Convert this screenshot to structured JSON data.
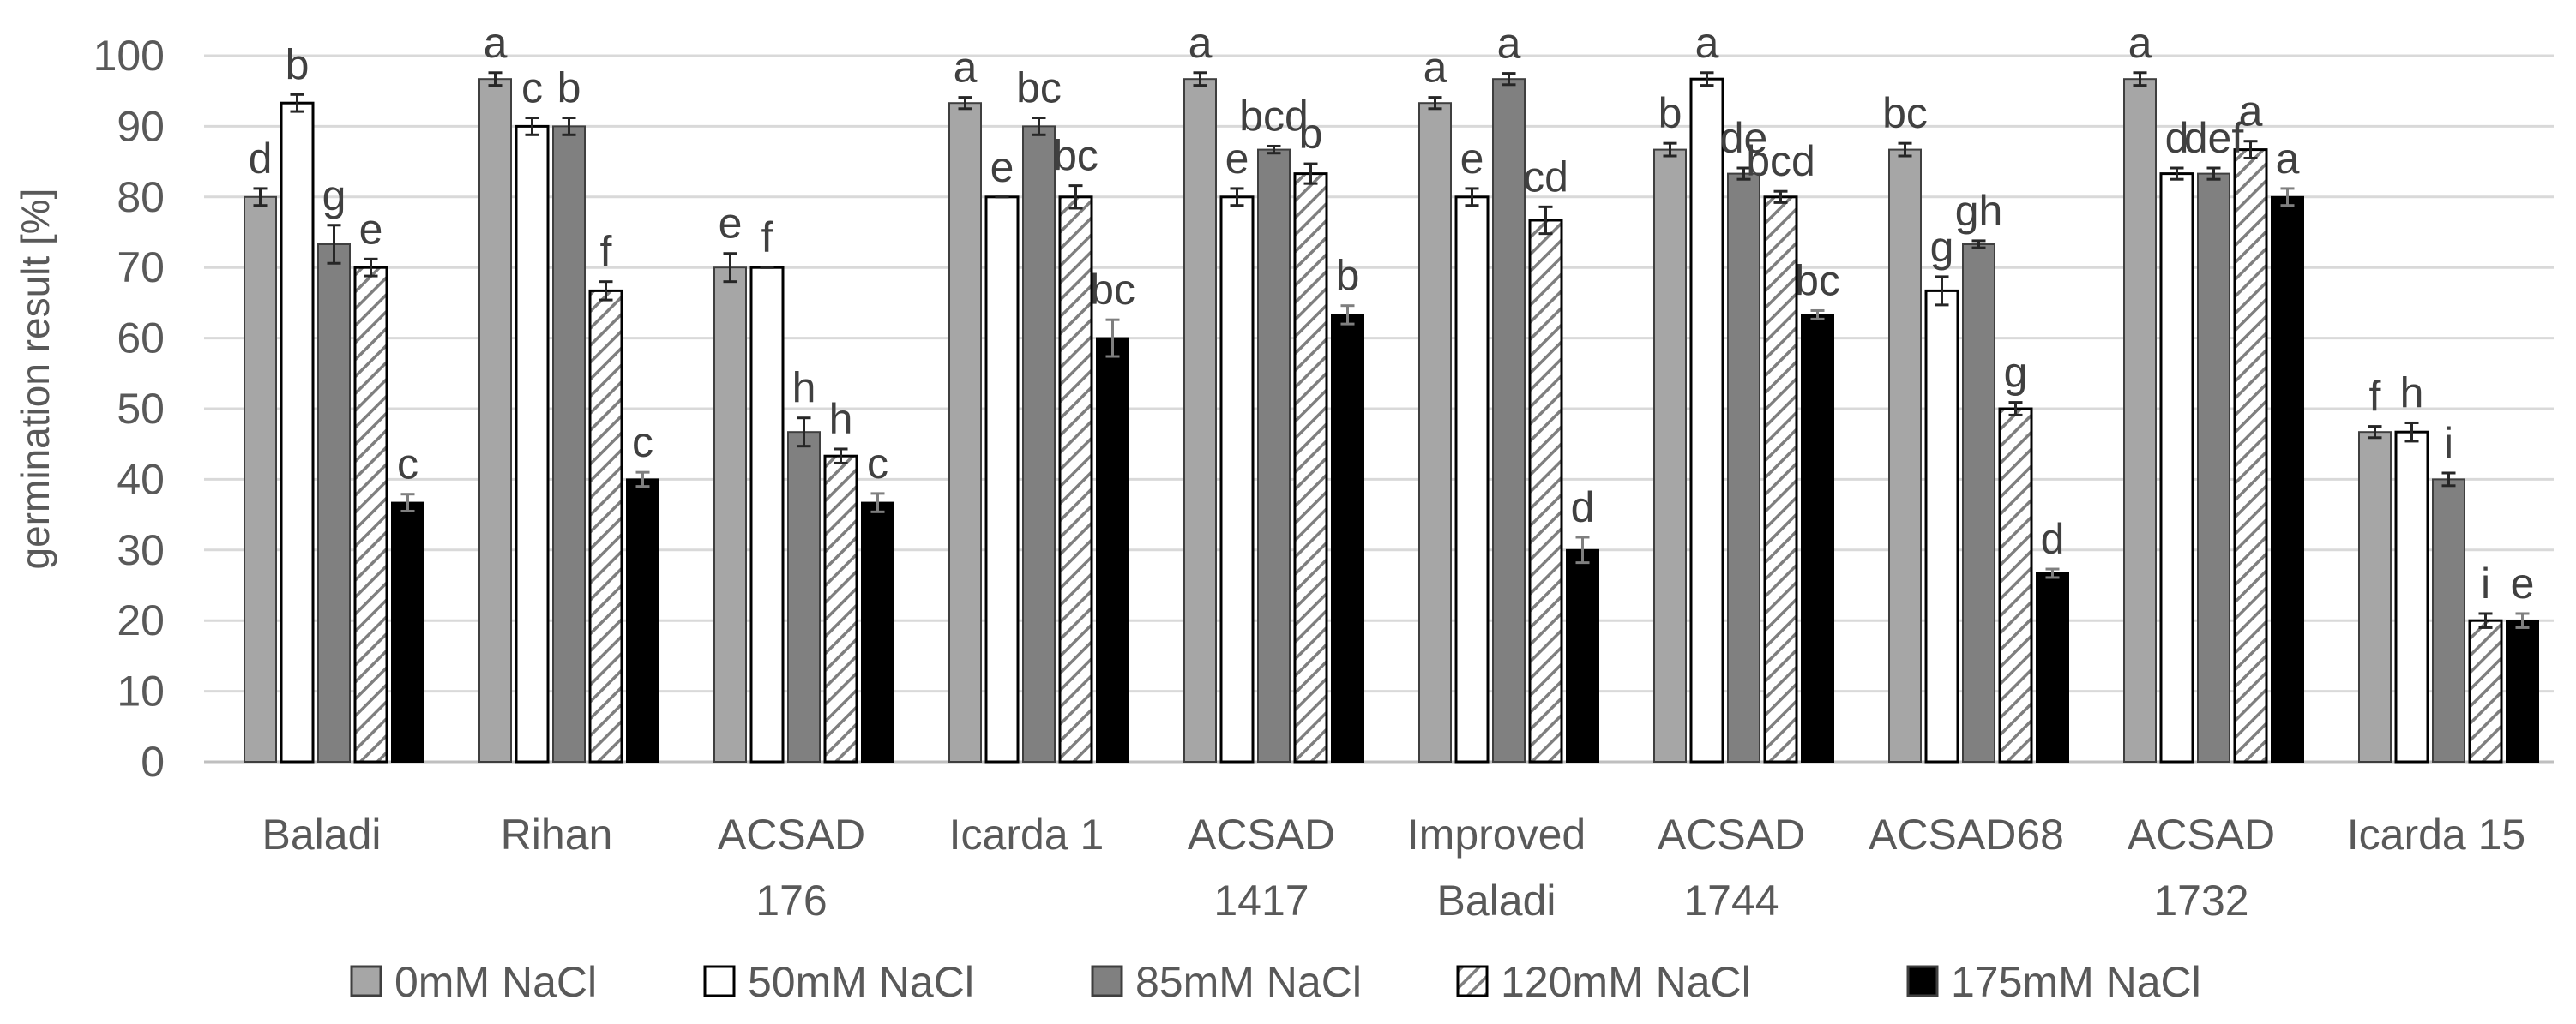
{
  "chart_data": {
    "type": "bar",
    "title": "",
    "xlabel": "",
    "ylabel": "germination result [%]",
    "ylim": [
      0,
      100
    ],
    "yticks": [
      0,
      10,
      20,
      30,
      40,
      50,
      60,
      70,
      80,
      90,
      100
    ],
    "grid": true,
    "legend_position": "bottom",
    "categories": [
      [
        "Baladi"
      ],
      [
        "Rihan"
      ],
      [
        "ACSAD",
        "176"
      ],
      [
        "Icarda 1"
      ],
      [
        "ACSAD",
        "1417"
      ],
      [
        "Improved",
        "Baladi"
      ],
      [
        "ACSAD",
        "1744"
      ],
      [
        "ACSAD68"
      ],
      [
        "ACSAD",
        "1732"
      ],
      [
        "Icarda 15"
      ]
    ],
    "series": [
      {
        "name": "0mM NaCl",
        "style": "gray",
        "color": "#A6A6A6",
        "values": [
          80,
          96.7,
          70,
          93.3,
          96.7,
          93.3,
          86.7,
          86.7,
          96.7,
          46.7
        ],
        "errors": [
          1.2,
          0.9,
          2.0,
          0.8,
          0.9,
          0.8,
          0.9,
          0.9,
          0.9,
          0.8
        ],
        "labels": [
          "d",
          "a",
          "e",
          "a",
          "a",
          "a",
          "b",
          "bc",
          "a",
          "f"
        ]
      },
      {
        "name": "50mM  NaCl",
        "style": "white",
        "color": "#FFFFFF",
        "values": [
          93.3,
          90,
          70,
          80,
          80,
          80,
          96.7,
          66.7,
          83.3,
          46.7
        ],
        "errors": [
          1.2,
          1.2,
          0,
          0,
          1.2,
          1.2,
          0.9,
          2.0,
          0.8,
          1.3
        ],
        "labels": [
          "b",
          "c",
          "f",
          "e",
          "e",
          "e",
          "a",
          "g",
          "d",
          "h"
        ]
      },
      {
        "name": "85mM  NaCl",
        "style": "darkgray",
        "color": "#808080",
        "values": [
          73.3,
          90,
          46.7,
          90,
          86.7,
          96.7,
          83.3,
          73.3,
          83.3,
          40
        ],
        "errors": [
          2.7,
          1.2,
          2.0,
          1.2,
          0.5,
          0.8,
          0.8,
          0.5,
          0.8,
          0.9
        ],
        "labels": [
          "g",
          "b",
          "h",
          "bc",
          "bcd",
          "a",
          "de",
          "gh",
          "def",
          "i"
        ]
      },
      {
        "name": "120mM  NaCl",
        "style": "hatched",
        "color": "#FFFFFF",
        "values": [
          70,
          66.7,
          43.3,
          80,
          83.3,
          76.7,
          80,
          50,
          86.7,
          20
        ],
        "errors": [
          1.2,
          1.3,
          1.0,
          1.6,
          1.4,
          1.9,
          0.8,
          0.9,
          1.2,
          1.0
        ],
        "labels": [
          "e",
          "f",
          "h",
          "bc",
          "b",
          "cd",
          "bcd",
          "g",
          "a",
          "i"
        ]
      },
      {
        "name": "175mM NaCl",
        "style": "black",
        "color": "#000000",
        "values": [
          36.7,
          40,
          36.7,
          60,
          63.3,
          30,
          63.3,
          26.7,
          80,
          20
        ],
        "errors": [
          1.2,
          1.0,
          1.3,
          2.6,
          1.3,
          1.8,
          0.6,
          0.6,
          1.2,
          1.0
        ],
        "labels": [
          "c",
          "c",
          "c",
          "bc",
          "b",
          "d",
          "bc",
          "d",
          "a",
          "e"
        ]
      }
    ]
  }
}
